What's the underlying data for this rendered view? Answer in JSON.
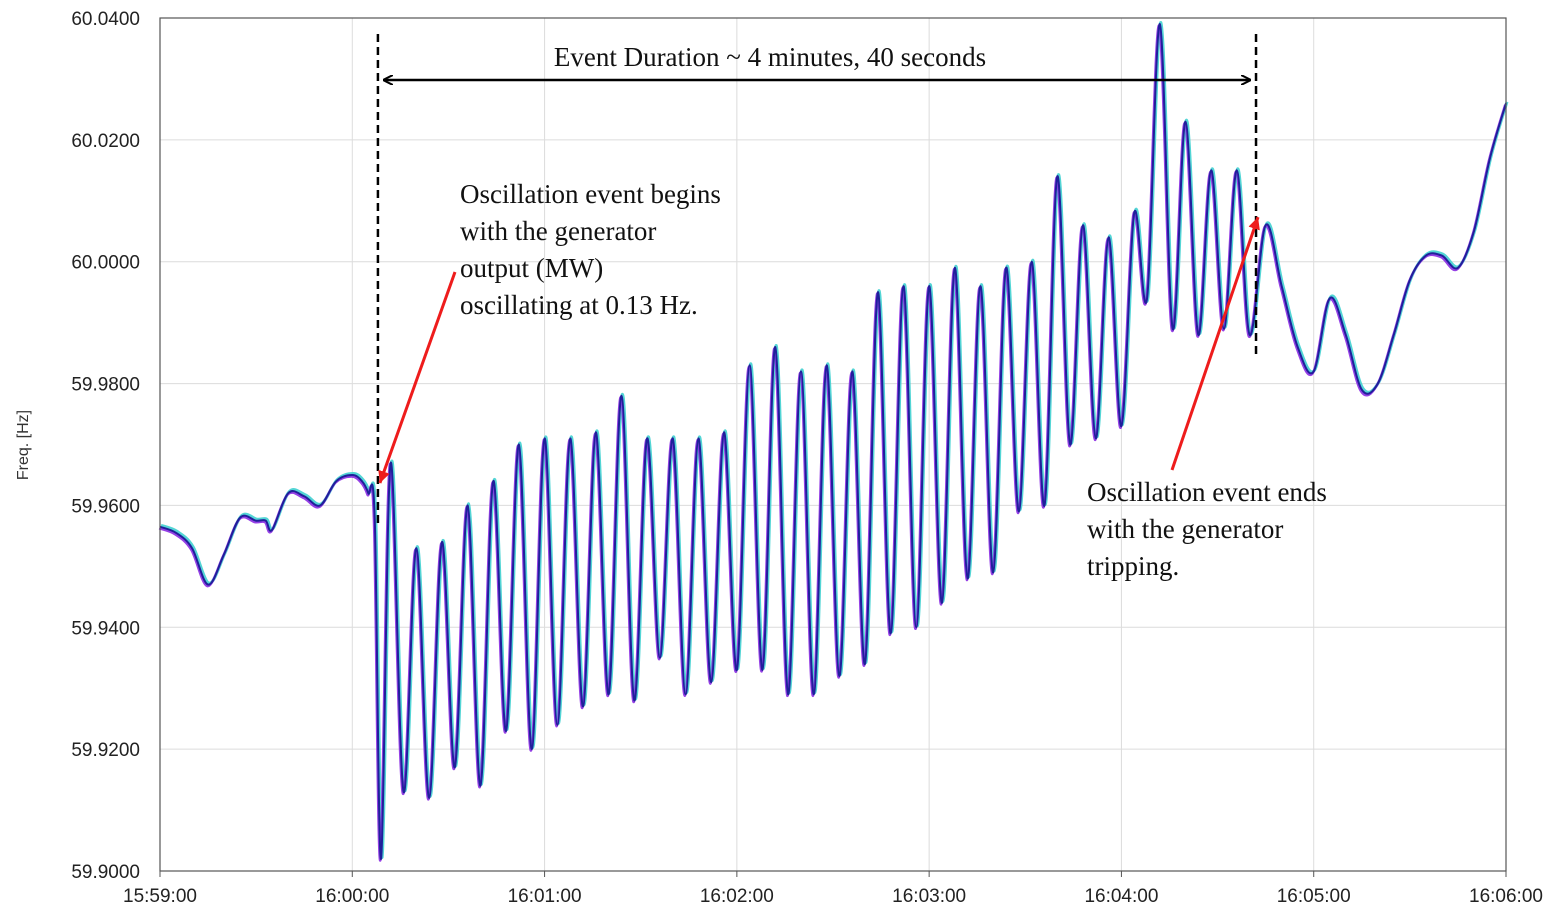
{
  "chart_data": {
    "type": "line",
    "title": "",
    "xlabel": "",
    "ylabel": "Freq. [Hz]",
    "grid": true,
    "ylim": [
      59.9,
      60.04
    ],
    "xlim": [
      "15:59:00",
      "16:06:00"
    ],
    "y_ticks": [
      "59.9000",
      "59.9200",
      "59.9400",
      "59.9600",
      "59.9800",
      "60.0000",
      "60.0200",
      "60.0400"
    ],
    "x_ticks": [
      "15:59:00",
      "16:00:00",
      "16:01:00",
      "16:02:00",
      "16:03:00",
      "16:04:00",
      "16:05:00",
      "16:06:00"
    ],
    "line_colors": [
      "#20209a",
      "#8a2be2",
      "#40d0d0"
    ],
    "series": [
      {
        "x": [
          "15:59:00",
          "15:59:05",
          "15:59:10",
          "15:59:15",
          "15:59:20",
          "15:59:25",
          "15:59:30",
          "15:59:33",
          "15:59:35",
          "15:59:40",
          "15:59:45",
          "15:59:50",
          "15:59:55",
          "16:00:00",
          "16:00:03",
          "16:00:05",
          "16:00:07",
          "16:00:09",
          "16:00:12",
          "16:00:16",
          "16:00:20",
          "16:00:24",
          "16:00:28",
          "16:00:32",
          "16:00:36",
          "16:00:40",
          "16:00:44",
          "16:00:48",
          "16:00:52",
          "16:00:56",
          "16:01:00",
          "16:01:04",
          "16:01:08",
          "16:01:12",
          "16:01:16",
          "16:01:20",
          "16:01:24",
          "16:01:28",
          "16:01:32",
          "16:01:36",
          "16:01:40",
          "16:01:44",
          "16:01:48",
          "16:01:52",
          "16:01:56",
          "16:02:00",
          "16:02:04",
          "16:02:08",
          "16:02:12",
          "16:02:16",
          "16:02:20",
          "16:02:24",
          "16:02:28",
          "16:02:32",
          "16:02:36",
          "16:02:40",
          "16:02:44",
          "16:02:48",
          "16:02:52",
          "16:02:56",
          "16:03:00",
          "16:03:04",
          "16:03:08",
          "16:03:12",
          "16:03:16",
          "16:03:20",
          "16:03:24",
          "16:03:28",
          "16:03:32",
          "16:03:36",
          "16:03:40",
          "16:03:44",
          "16:03:48",
          "16:03:52",
          "16:03:56",
          "16:04:00",
          "16:04:04",
          "16:04:08",
          "16:04:12",
          "16:04:16",
          "16:04:20",
          "16:04:24",
          "16:04:28",
          "16:04:32",
          "16:04:36",
          "16:04:40",
          "16:04:45",
          "16:04:50",
          "16:04:55",
          "16:05:00",
          "16:05:05",
          "16:05:10",
          "16:05:15",
          "16:05:20",
          "16:05:25",
          "16:05:30",
          "16:05:35",
          "16:05:40",
          "16:05:45",
          "16:05:50",
          "16:05:55",
          "16:06:00"
        ],
        "values": [
          59.9565,
          59.9555,
          59.953,
          59.947,
          59.952,
          59.958,
          59.9575,
          59.9575,
          59.956,
          59.962,
          59.9615,
          59.96,
          59.964,
          59.965,
          59.964,
          59.962,
          59.958,
          59.902,
          59.967,
          59.913,
          59.953,
          59.912,
          59.954,
          59.917,
          59.96,
          59.914,
          59.964,
          59.923,
          59.97,
          59.92,
          59.971,
          59.924,
          59.971,
          59.927,
          59.972,
          59.929,
          59.978,
          59.928,
          59.971,
          59.935,
          59.971,
          59.929,
          59.971,
          59.931,
          59.972,
          59.933,
          59.983,
          59.933,
          59.986,
          59.929,
          59.982,
          59.929,
          59.983,
          59.932,
          59.982,
          59.934,
          59.995,
          59.939,
          59.996,
          59.94,
          59.996,
          59.944,
          59.999,
          59.948,
          59.996,
          59.949,
          59.999,
          59.959,
          60.0,
          59.96,
          60.014,
          59.97,
          60.006,
          59.971,
          60.004,
          59.973,
          60.008,
          59.994,
          60.039,
          59.989,
          60.023,
          59.988,
          60.015,
          59.989,
          60.015,
          59.988,
          60.006,
          59.996,
          59.986,
          59.982,
          59.994,
          59.988,
          59.979,
          59.98,
          59.988,
          59.997,
          60.001,
          60.001,
          59.999,
          60.005,
          60.017,
          60.026
        ]
      }
    ],
    "annotations": {
      "duration_label": "Event Duration ~ 4 minutes, 40 seconds",
      "begin_lines": [
        "Oscillation event begins",
        "with the generator",
        "output (MW)",
        "oscillating at 0.13 Hz."
      ],
      "end_lines": [
        "Oscillation event ends",
        "with the generator",
        "tripping."
      ],
      "arrow_color": "#ee1c1c",
      "event_start": "16:00:08",
      "event_end": "16:04:42"
    }
  }
}
